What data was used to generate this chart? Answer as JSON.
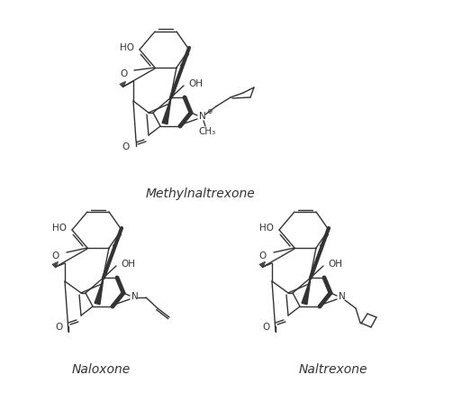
{
  "background_color": "#ffffff",
  "title_methylnaltrexone": "Methylnaltrexone",
  "title_naloxone": "Naloxone",
  "title_naltrexone": "Naltrexone",
  "title_fontsize": 10,
  "figsize": [
    5.13,
    4.36
  ],
  "dpi": 100
}
